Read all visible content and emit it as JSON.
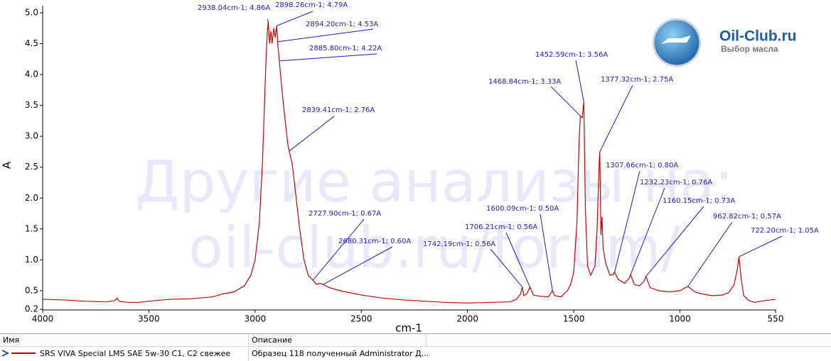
{
  "chart_data": {
    "type": "line",
    "x_label": "cm-1",
    "y_label": "A",
    "xlim": [
      4000,
      550
    ],
    "xticks": [
      4000,
      3500,
      3000,
      2500,
      2000,
      1500,
      1000,
      550
    ],
    "ylim": [
      0.2,
      5.0
    ],
    "yticks": [
      0.2,
      0.5,
      {
        "value": 1,
        "label": "1.0"
      },
      1.5,
      {
        "value": 2,
        "label": "2.0"
      },
      2.5,
      {
        "value": 3,
        "label": "3.0"
      },
      3.5,
      {
        "value": 4,
        "label": "4.0"
      },
      4.5,
      {
        "value": 5,
        "label": "5.0"
      }
    ],
    "grid": false,
    "series": [
      {
        "name": "SRS VIVA Special LMS SAE 5w-30 C1, C2 свежее",
        "color": "#cc0000",
        "x": [
          4000,
          3900,
          3800,
          3700,
          3660,
          3649.7,
          3640,
          3600,
          3550,
          3500,
          3400,
          3300,
          3200,
          3150,
          3100,
          3050,
          3020,
          3000,
          2980,
          2965,
          2955,
          2948,
          2942,
          2938.04,
          2932,
          2925,
          2920,
          2912,
          2905,
          2898.26,
          2894.2,
          2885.8,
          2875,
          2860,
          2845,
          2839.41,
          2825,
          2810,
          2790,
          2770,
          2750,
          2727.9,
          2710,
          2695,
          2680.31,
          2650,
          2600,
          2500,
          2400,
          2300,
          2200,
          2100,
          2000,
          1900,
          1800,
          1770,
          1750,
          1742.19,
          1735,
          1720,
          1706.21,
          1690,
          1660,
          1620,
          1600.09,
          1590,
          1560,
          1530,
          1515,
          1500,
          1485,
          1475,
          1468.84,
          1460,
          1452.59,
          1445,
          1435,
          1420,
          1400,
          1390,
          1380,
          1377.32,
          1372,
          1367,
          1362,
          1350,
          1330,
          1315,
          1307.66,
          1290,
          1260,
          1240,
          1232.23,
          1215,
          1190,
          1170,
          1160.15,
          1140,
          1100,
          1050,
          1000,
          962.82,
          930,
          900,
          850,
          800,
          770,
          745,
          730,
          722.2,
          712,
          700,
          680,
          650,
          620,
          600,
          575,
          550
        ],
        "values": [
          0.36,
          0.35,
          0.33,
          0.32,
          0.34,
          0.38,
          0.33,
          0.31,
          0.31,
          0.33,
          0.36,
          0.37,
          0.4,
          0.45,
          0.48,
          0.58,
          0.75,
          1.0,
          1.6,
          2.6,
          3.6,
          4.3,
          4.7,
          4.86,
          4.5,
          4.7,
          4.5,
          4.75,
          4.6,
          4.79,
          4.53,
          4.22,
          3.8,
          3.3,
          2.85,
          2.76,
          2.55,
          2.1,
          1.5,
          1.0,
          0.75,
          0.67,
          0.6,
          0.62,
          0.6,
          0.55,
          0.5,
          0.43,
          0.38,
          0.35,
          0.33,
          0.31,
          0.3,
          0.31,
          0.32,
          0.36,
          0.45,
          0.56,
          0.42,
          0.45,
          0.56,
          0.43,
          0.41,
          0.4,
          0.5,
          0.42,
          0.4,
          0.5,
          0.6,
          0.8,
          1.6,
          2.9,
          3.33,
          3.3,
          3.56,
          1.8,
          0.9,
          0.75,
          0.9,
          1.5,
          2.6,
          2.75,
          1.4,
          1.7,
          1.2,
          0.95,
          0.75,
          0.76,
          0.8,
          0.68,
          0.62,
          0.7,
          0.76,
          0.6,
          0.58,
          0.65,
          0.73,
          0.55,
          0.5,
          0.48,
          0.5,
          0.57,
          0.48,
          0.45,
          0.42,
          0.43,
          0.47,
          0.6,
          0.85,
          1.05,
          0.7,
          0.42,
          0.35,
          0.31,
          0.33,
          0.34,
          0.35,
          0.36
        ]
      }
    ],
    "annotations": [
      {
        "x": 2938.04,
        "y": 4.86,
        "label": "2938.04cm-1; 4.86A"
      },
      {
        "x": 2898.26,
        "y": 4.79,
        "label": "2898.26cm-1; 4.79A"
      },
      {
        "x": 2894.2,
        "y": 4.53,
        "label": "2894.20cm-1; 4.53A"
      },
      {
        "x": 2885.8,
        "y": 4.22,
        "label": "2885.80cm-1; 4.22A"
      },
      {
        "x": 2839.41,
        "y": 2.76,
        "label": "2839.41cm-1; 2.76A"
      },
      {
        "x": 2727.9,
        "y": 0.67,
        "label": "2727.90cm-1; 0.67A"
      },
      {
        "x": 2680.31,
        "y": 0.6,
        "label": "2680.31cm-1; 0.60A"
      },
      {
        "x": 1742.19,
        "y": 0.56,
        "label": "1742.19cm-1; 0.56A"
      },
      {
        "x": 1706.21,
        "y": 0.56,
        "label": "1706.21cm-1; 0.56A"
      },
      {
        "x": 1600.09,
        "y": 0.5,
        "label": "1600.09cm-1; 0.50A"
      },
      {
        "x": 1468.84,
        "y": 3.33,
        "label": "1468.84cm-1; 3.33A"
      },
      {
        "x": 1452.59,
        "y": 3.56,
        "label": "1452.59cm-1; 3.56A"
      },
      {
        "x": 1377.32,
        "y": 2.75,
        "label": "1377.32cm-1; 2.75A"
      },
      {
        "x": 1307.66,
        "y": 0.8,
        "label": "1307.66cm-1; 0.80A"
      },
      {
        "x": 1232.23,
        "y": 0.76,
        "label": "1232.23cm-1; 0.76A"
      },
      {
        "x": 1160.15,
        "y": 0.73,
        "label": "1160.15cm-1; 0.73A"
      },
      {
        "x": 962.82,
        "y": 0.57,
        "label": "962.82cm-1; 0.57A"
      },
      {
        "x": 722.2,
        "y": 1.05,
        "label": "722.20cm-1; 1.05A"
      }
    ]
  },
  "watermark": {
    "line1": "Другие анализы на:",
    "line2": "oil-club.ru/forum/"
  },
  "logo": {
    "title": "Oil-Club.ru",
    "subtitle": "Выбор масла"
  },
  "table": {
    "columns": [
      "Имя",
      "Описание"
    ],
    "description": "Образец 118 полученный Administrator Д..."
  }
}
